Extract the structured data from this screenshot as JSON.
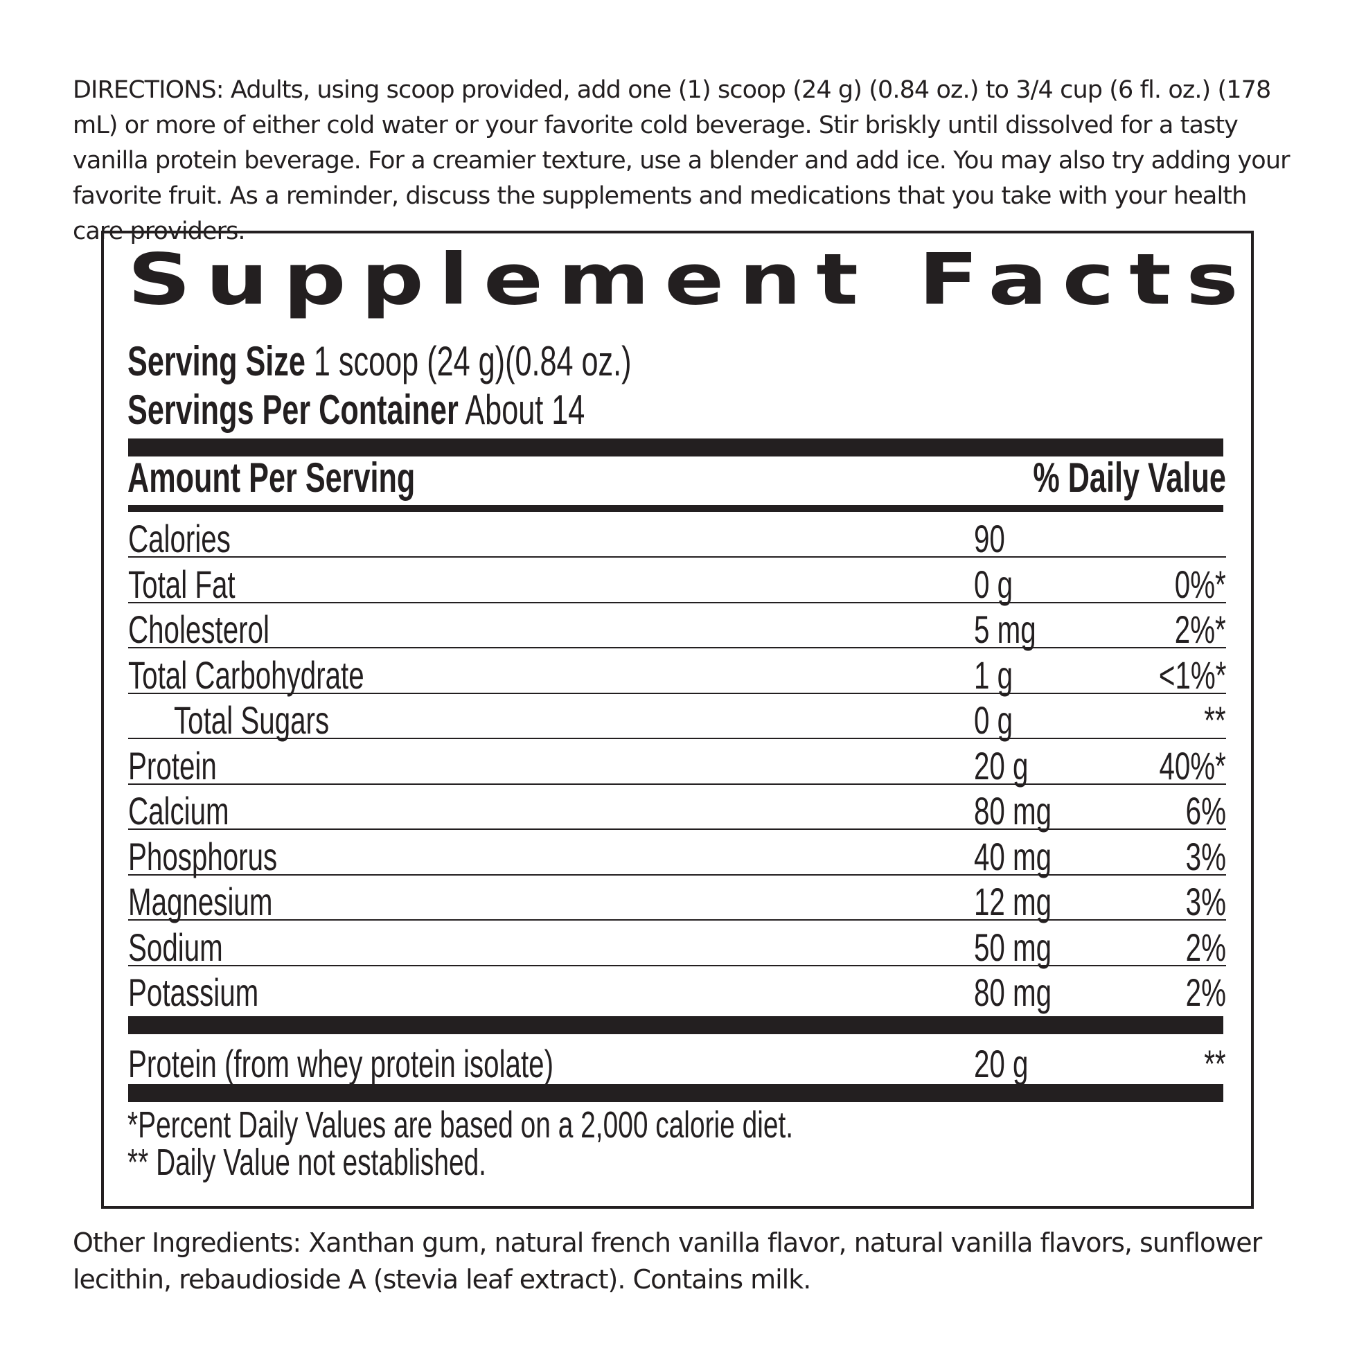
{
  "directions": {
    "label": "DIRECTIONS:",
    "text": " Adults, using scoop provided, add one (1) scoop (24 g) (0.84 oz.) to 3/4 cup (6 fl. oz.) (178 mL) or more of either cold water or your favorite cold beverage. Stir briskly until dissolved for a tasty vanilla protein beverage. For a creamier texture, use a blender and add ice. You may also try adding your favorite fruit. As a reminder, discuss the supplements and medications that you take with your health care providers."
  },
  "facts": {
    "title": "Supplement Facts",
    "serving_size_label": "Serving Size",
    "serving_size_value": " 1 scoop (24 g)(0.84 oz.)",
    "servings_per_container_label": "Servings Per Container",
    "servings_per_container_value": " About 14",
    "amount_header": "Amount Per Serving",
    "dv_header": "% Daily Value",
    "rows": [
      {
        "name": "Calories",
        "amount": "90",
        "dv": ""
      },
      {
        "name": "Total Fat",
        "amount": "0 g",
        "dv": "0%*"
      },
      {
        "name": "Cholesterol",
        "amount": "5 mg",
        "dv": "2%*"
      },
      {
        "name": "Total Carbohydrate",
        "amount": "1 g",
        "dv": "<1%*"
      },
      {
        "name": "Total Sugars",
        "amount": "0 g",
        "dv": "**",
        "indent": true
      },
      {
        "name": "Protein",
        "amount": "20 g",
        "dv": "40%*"
      },
      {
        "name": "Calcium",
        "amount": "80 mg",
        "dv": "6%"
      },
      {
        "name": "Phosphorus",
        "amount": "40 mg",
        "dv": "3%"
      },
      {
        "name": "Magnesium",
        "amount": "12 mg",
        "dv": "3%"
      },
      {
        "name": "Sodium",
        "amount": "50 mg",
        "dv": "2%"
      },
      {
        "name": "Potassium",
        "amount": "80 mg",
        "dv": "2%"
      }
    ],
    "extra_row": {
      "name": "Protein (from whey protein isolate)",
      "amount": "20 g",
      "dv": "**"
    },
    "footnote_1": "*Percent Daily Values are based on a 2,000 calorie diet.",
    "footnote_2": "** Daily Value not established."
  },
  "other_ingredients": "Other Ingredients: Xanthan gum, natural french vanilla flavor, natural vanilla flavors, sunflower lecithin, rebaudioside A (stevia leaf extract).  Contains milk."
}
